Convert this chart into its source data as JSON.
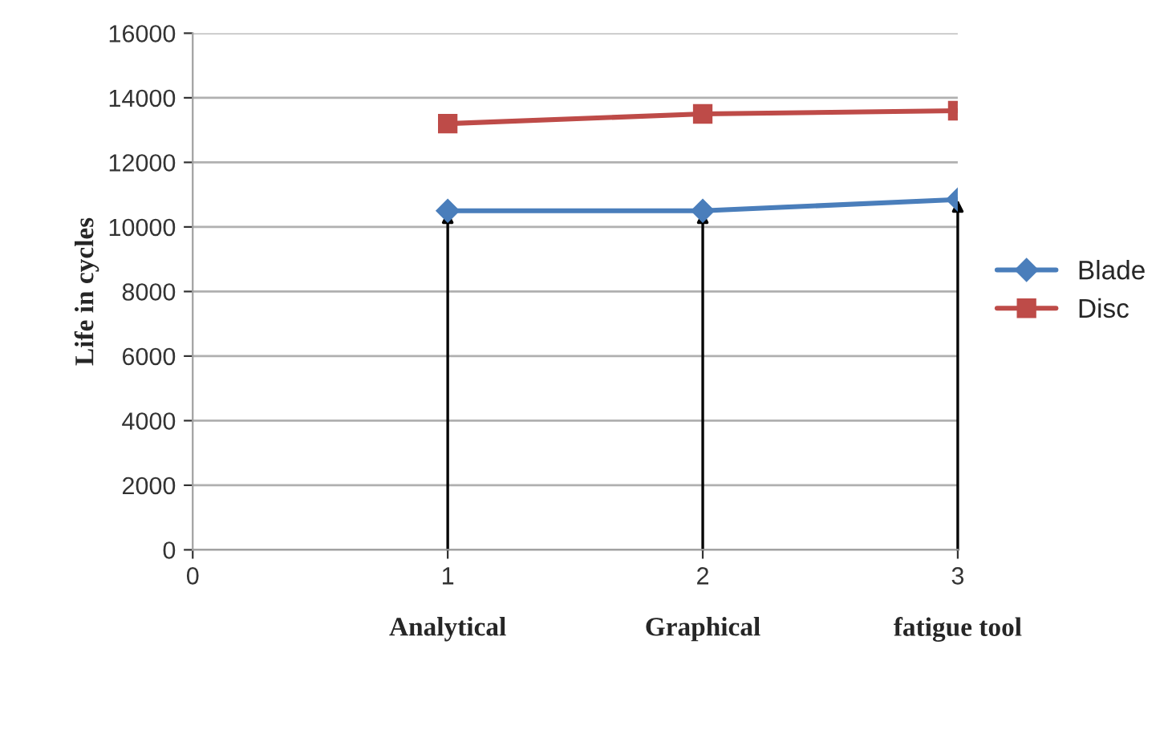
{
  "chart_data": {
    "type": "line",
    "ylabel": "Life in cycles",
    "x": [
      1,
      2,
      3
    ],
    "series": [
      {
        "name": "Blade",
        "color": "#4a7ebb",
        "values": [
          10500,
          10500,
          10850
        ],
        "marker": "diamond"
      },
      {
        "name": "Disc",
        "color": "#be4b48",
        "values": [
          13200,
          13500,
          13600
        ],
        "marker": "square"
      }
    ],
    "xlim": [
      0,
      3
    ],
    "xticks": [
      0,
      1,
      2,
      3
    ],
    "ylim": [
      0,
      16000
    ],
    "yticks": [
      0,
      2000,
      4000,
      6000,
      8000,
      10000,
      12000,
      14000,
      16000
    ],
    "grid": "y",
    "legend": "right",
    "line_style": "solid",
    "annotations": [
      "Analytical",
      "Graphical",
      "fatigue tool"
    ]
  }
}
